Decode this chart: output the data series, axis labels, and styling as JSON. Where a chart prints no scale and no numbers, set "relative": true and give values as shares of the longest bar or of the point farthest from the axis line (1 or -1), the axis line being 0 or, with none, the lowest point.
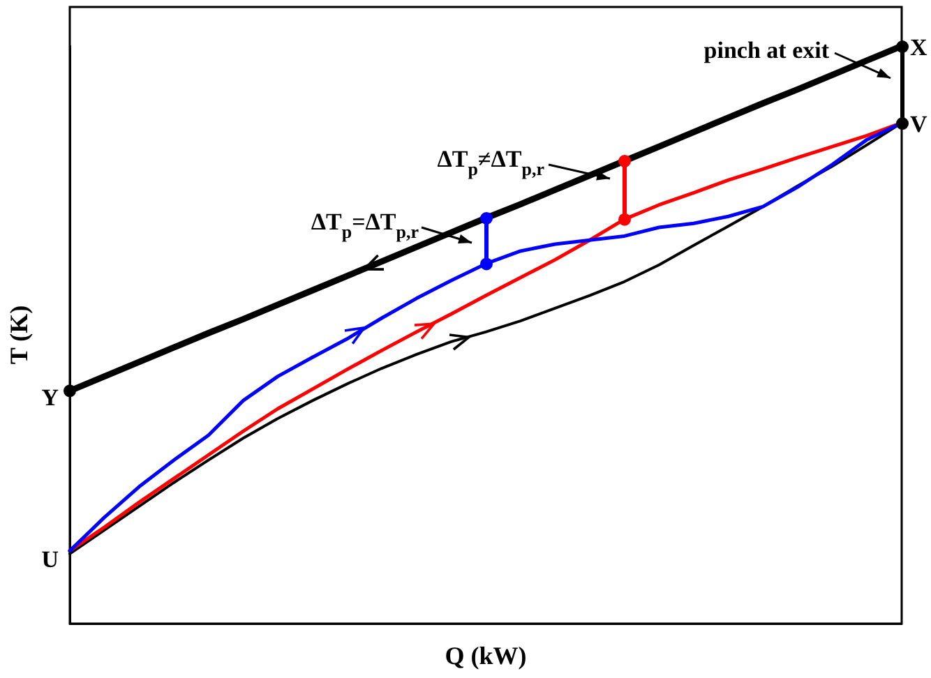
{
  "chart_data": {
    "type": "line",
    "relative": true,
    "xlabel": "Q (kW)",
    "ylabel": "T (K)",
    "grid": false,
    "legend": false,
    "marker": "none",
    "categories": [
      null,
      null,
      null,
      null,
      null,
      null,
      null,
      null,
      null,
      null,
      null,
      null,
      null,
      null,
      null,
      null,
      null,
      null,
      null,
      null,
      null,
      null,
      null,
      null,
      null
    ],
    "series": [
      {
        "color": "#000000",
        "values": [
          0.403,
          0.428,
          0.453,
          0.478,
          0.503,
          0.527,
          0.552,
          0.577,
          0.602,
          0.627,
          0.652,
          0.677,
          0.702,
          0.726,
          0.751,
          0.776,
          0.801,
          0.826,
          0.851,
          0.876,
          0.901,
          0.925,
          0.95,
          0.975,
          1
        ]
      },
      {
        "color": "#0000ff",
        "values": [
          0.126,
          0.184,
          0.237,
          0.283,
          0.326,
          0.386,
          0.428,
          0.461,
          0.493,
          0.529,
          0.563,
          0.594,
          0.623,
          0.645,
          0.657,
          0.664,
          0.671,
          0.686,
          0.693,
          0.705,
          0.722,
          0.756,
          0.795,
          0.838,
          0.867
        ]
      },
      {
        "color": "#ff0000",
        "values": [
          0.126,
          0.167,
          0.21,
          0.251,
          0.292,
          0.333,
          0.372,
          0.406,
          0.44,
          0.473,
          0.505,
          0.536,
          0.568,
          0.599,
          0.63,
          0.664,
          0.7,
          0.725,
          0.746,
          0.768,
          0.787,
          0.807,
          0.826,
          0.845,
          0.867
        ]
      },
      {
        "color": "#000000",
        "values": [
          0.121,
          0.162,
          0.203,
          0.244,
          0.283,
          0.321,
          0.355,
          0.386,
          0.415,
          0.442,
          0.466,
          0.488,
          0.505,
          0.524,
          0.546,
          0.568,
          0.592,
          0.621,
          0.655,
          0.688,
          0.722,
          0.758,
          0.792,
          0.829,
          0.867
        ]
      }
    ],
    "annotations": [
      "X",
      "V",
      "Y",
      "U",
      "pinch at exit",
      "ΔT$_{p}$=ΔT$_{p,r}$",
      "ΔT$_{p}$≠ΔT$_{p,r}$"
    ]
  }
}
